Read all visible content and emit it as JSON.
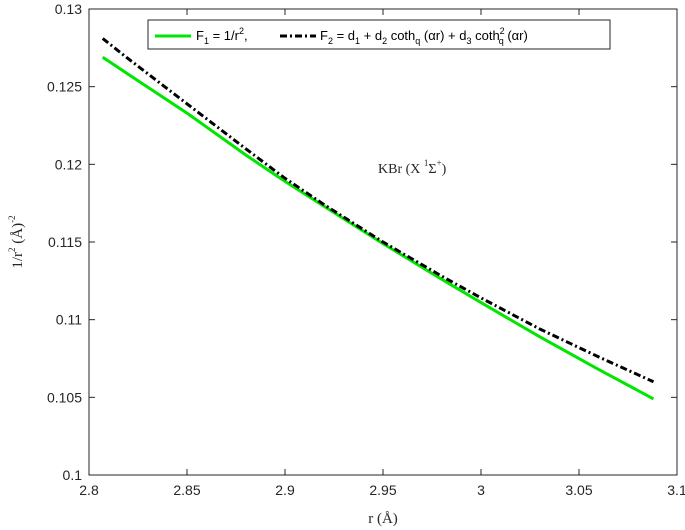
{
  "chart_data": {
    "type": "line",
    "xlabel": "r (Å)",
    "ylabel": "1/r² (Å)⁻²",
    "annotation": "KBr (X ¹Σ⁺)",
    "xlim": [
      2.8,
      3.1
    ],
    "ylim": [
      0.1,
      0.13
    ],
    "xticks": [
      2.8,
      2.85,
      2.9,
      2.95,
      3,
      3.05,
      3.1
    ],
    "yticks": [
      0.1,
      0.105,
      0.11,
      0.115,
      0.12,
      0.125,
      0.13
    ],
    "xtick_labels": [
      "2.8",
      "2.85",
      "2.9",
      "2.95",
      "3",
      "3.05",
      "3.1"
    ],
    "ytick_labels": [
      "0.1",
      "0.105",
      "0.11",
      "0.115",
      "0.12",
      "0.125",
      "0.13"
    ],
    "grid": false,
    "legend_position": "top",
    "series": [
      {
        "name": "F1 = 1/r²,",
        "color": "#00e600",
        "style": "solid",
        "x": [
          2.807,
          2.82,
          2.85,
          2.88,
          2.9,
          2.92,
          2.95,
          2.98,
          3.0,
          3.03,
          3.06,
          3.088
        ],
        "y": [
          0.1269,
          0.1258,
          0.1233,
          0.1206,
          0.1189,
          0.1173,
          0.1149,
          0.1126,
          0.1111,
          0.1089,
          0.1068,
          0.1049
        ]
      },
      {
        "name": "F2 = d1 + d2 coth_q (αr) + d3 coth²_q (αr)",
        "color": "#000000",
        "style": "dashdot",
        "x": [
          2.807,
          2.82,
          2.85,
          2.88,
          2.9,
          2.92,
          2.95,
          2.98,
          3.0,
          3.03,
          3.06,
          3.088
        ],
        "y": [
          0.1281,
          0.1268,
          0.1239,
          0.121,
          0.1191,
          0.1174,
          0.115,
          0.1128,
          0.1114,
          0.1094,
          0.1076,
          0.106
        ]
      }
    ],
    "legend": {
      "f1": {
        "name": "F",
        "sub": "1",
        "eq": " = 1/r",
        "sup": "2",
        "tail": ","
      },
      "f2": {
        "name": "F",
        "sub": "2",
        "eq": " = d",
        "d1sub": "1",
        "plus1": " + d",
        "d2sub": "2",
        "coth1": " coth",
        "q1sub": "q",
        "arg1": " (αr) + d",
        "d3sub": "3",
        "coth2": " coth",
        "coth2sup": "2",
        "q2sub": "q",
        "arg2": " (αr)"
      }
    },
    "annotation_parts": {
      "text": "KBr (X ",
      "sup1": "1",
      "sym": "Σ",
      "sup2": "+",
      "close": ")"
    },
    "xlabel_parts": {
      "text": "r (Å)"
    },
    "ylabel_parts": {
      "pre": "1/r",
      "sup": "2",
      "mid": " (Å)",
      "sup2": "-2"
    }
  }
}
